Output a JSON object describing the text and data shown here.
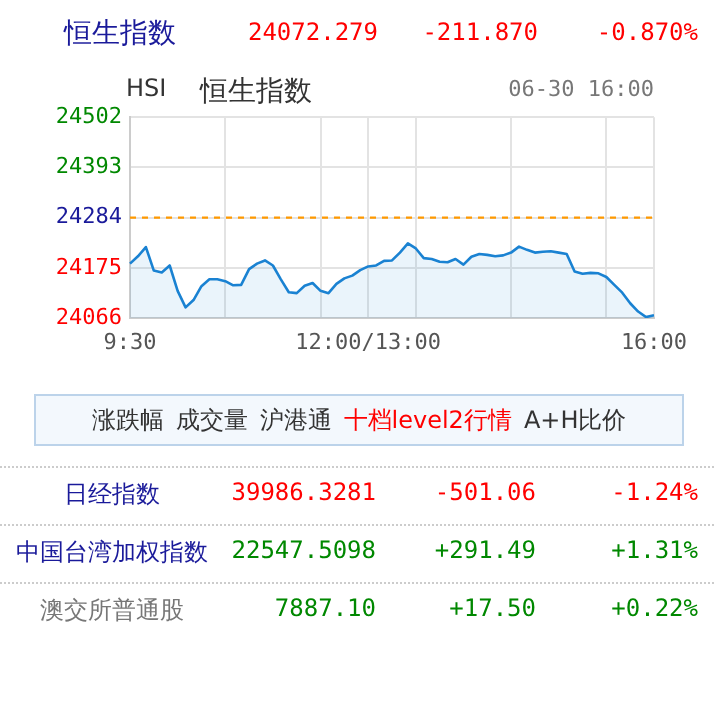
{
  "chart_data": {
    "type": "area",
    "title": "恒生指数",
    "subtitle": "HSI",
    "annotations": [
      "24072.279",
      "-211.870",
      "-0.870%",
      "恒生指数",
      "06-30 16:00",
      "涨跌幅",
      "成交量",
      "沪港通",
      "十档level2行情",
      "A+H比价",
      "日经指数",
      "39986.3281",
      "-501.06",
      "-1.24%",
      "中国台湾加权指数",
      "22547.5098",
      "+291.49",
      "+1.31%",
      "澳交所普通股",
      "7887.10",
      "+17.50",
      "+0.22%"
    ],
    "categories": [
      "9:30",
      null,
      null,
      null,
      null,
      null,
      null,
      null,
      null,
      null,
      null,
      null,
      null,
      null,
      null,
      null,
      null,
      null,
      null,
      null,
      null,
      null,
      null,
      null,
      null,
      null,
      null,
      null,
      null,
      null,
      "12:00/13:00",
      null,
      null,
      null,
      null,
      null,
      null,
      null,
      null,
      null,
      null,
      null,
      null,
      null,
      null,
      null,
      null,
      null,
      null,
      null,
      null,
      null,
      null,
      null,
      null,
      null,
      null,
      null,
      null,
      null,
      null,
      null,
      null,
      null,
      null,
      null,
      "16:00"
    ],
    "series": [
      {
        "color": "#1a82d2",
        "values": [
          24184,
          24200,
          24220,
          24169,
          24165,
          24180,
          24125,
          24089,
          24105,
          24135,
          24150,
          24150,
          24146,
          24137,
          24138,
          24172,
          24184,
          24191,
          24180,
          24150,
          24122,
          24120,
          24136,
          24142,
          24125,
          24120,
          24140,
          24152,
          24158,
          24170,
          24178,
          24180,
          24190,
          24191,
          24208,
          24228,
          24217,
          24196,
          24194,
          24188,
          24187,
          24194,
          24182,
          24199,
          24205,
          24203,
          24200,
          24202,
          24208,
          24221,
          24214,
          24208,
          24210,
          24211,
          24208,
          24205,
          24167,
          24162,
          24164,
          24163,
          24155,
          24138,
          24121,
          24098,
          24080,
          24068,
          24072
        ]
      }
    ],
    "ylim": [
      24066,
      24502
    ],
    "yticks": [
      24066,
      24175,
      24284,
      24393,
      24502
    ],
    "ref_lines": [
      {
        "axis": "y",
        "value": 24284,
        "color": "#ff9900",
        "line_style": "dashed"
      }
    ],
    "grid": true,
    "legend": false,
    "marker": "none",
    "line_style": "solid"
  }
}
